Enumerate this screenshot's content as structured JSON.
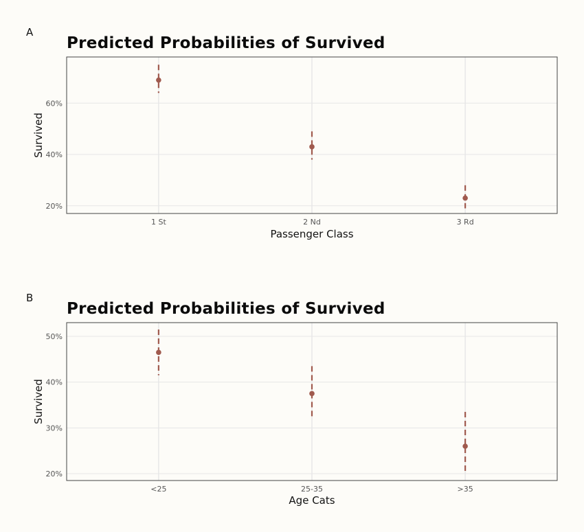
{
  "chart_data": [
    {
      "panel": "A",
      "type": "scatter",
      "title": "Predicted Probabilities of Survived",
      "xlabel": "Passenger Class",
      "ylabel": "Survived",
      "categories": [
        "1 St",
        "2 Nd",
        "3 Rd"
      ],
      "values": [
        0.69,
        0.43,
        0.23
      ],
      "ci_low": [
        0.64,
        0.38,
        0.19
      ],
      "ci_high": [
        0.75,
        0.49,
        0.28
      ],
      "ylim": [
        0.17,
        0.78
      ],
      "yticks": [
        0.2,
        0.4,
        0.6
      ],
      "ytick_labels": [
        "20%",
        "40%",
        "60%"
      ],
      "grid": true,
      "legend": "none",
      "color": "#a05a4e"
    },
    {
      "panel": "B",
      "type": "scatter",
      "title": "Predicted Probabilities of Survived",
      "xlabel": "Age Cats",
      "ylabel": "Survived",
      "categories": [
        "<25",
        "25-35",
        ">35"
      ],
      "values": [
        0.465,
        0.375,
        0.26
      ],
      "ci_low": [
        0.415,
        0.325,
        0.2
      ],
      "ci_high": [
        0.515,
        0.435,
        0.335
      ],
      "ylim": [
        0.185,
        0.53
      ],
      "yticks": [
        0.2,
        0.3,
        0.4,
        0.5
      ],
      "ytick_labels": [
        "20%",
        "30%",
        "40%",
        "50%"
      ],
      "grid": true,
      "legend": "none",
      "color": "#a05a4e"
    }
  ]
}
